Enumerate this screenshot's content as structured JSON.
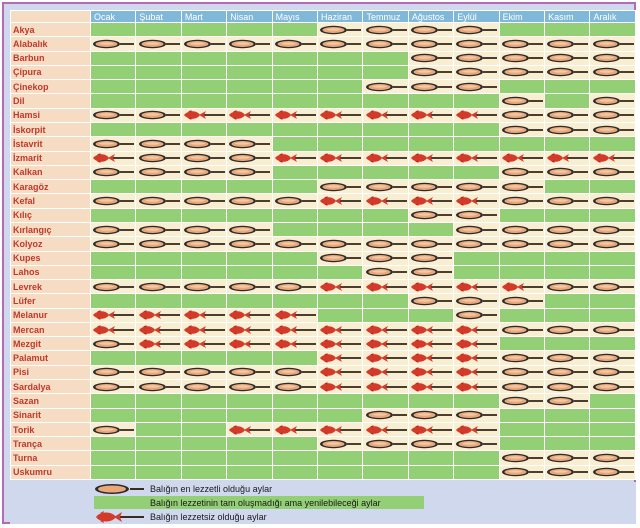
{
  "months": [
    "Ocak",
    "Şubat",
    "Mart",
    "Nisan",
    "Mayıs",
    "Haziran",
    "Temmuz",
    "Ağustos",
    "Eylül",
    "Ekim",
    "Kasım",
    "Aralık"
  ],
  "fish": [
    {
      "name": "Akya",
      "cells": "GGGGGPPPPGGG"
    },
    {
      "name": "Alabalık",
      "cells": "PPPPPPPPPPPP"
    },
    {
      "name": "Barbun",
      "cells": "GGGGGGGPPPPP"
    },
    {
      "name": "Çipura",
      "cells": "GGGGGGGPPPPP"
    },
    {
      "name": "Çinekop",
      "cells": "GGGGGGPPPGGG"
    },
    {
      "name": "Dil",
      "cells": "GGGGGGGGGPGP"
    },
    {
      "name": "Hamsi",
      "cells": "PPRRRRRRRPPP"
    },
    {
      "name": "İskorpit",
      "cells": "GGGGGGGGGPPP"
    },
    {
      "name": "İstavrit",
      "cells": "PPPPGGGGGGGG"
    },
    {
      "name": "İzmarit",
      "cells": "RPPPRRRRRRRR"
    },
    {
      "name": "Kalkan",
      "cells": "PPPPGGGGGPPP"
    },
    {
      "name": "Karagöz",
      "cells": "GGGGGPPPPPGG"
    },
    {
      "name": "Kefal",
      "cells": "PPPPPRRRRPPP"
    },
    {
      "name": "Kılıç",
      "cells": "GGGGGGGPPGGG"
    },
    {
      "name": "Kırlangıç",
      "cells": "PPPPGGGGPPPP"
    },
    {
      "name": "Kolyoz",
      "cells": "PPPPPPPPPPPP"
    },
    {
      "name": "Kupes",
      "cells": "GGGGGPPPGGGG"
    },
    {
      "name": "Lahos",
      "cells": "GGGGGGPPGGGG"
    },
    {
      "name": "Levrek",
      "cells": "PPPPPRRRRRPP"
    },
    {
      "name": "Lüfer",
      "cells": "GGGGGGGPPPGG"
    },
    {
      "name": "Melanur",
      "cells": "RRRRRGGGPGGG"
    },
    {
      "name": "Mercan",
      "cells": "RRRRRRRRRPPP"
    },
    {
      "name": "Mezgit",
      "cells": "PRRRRRRRRGGG"
    },
    {
      "name": "Palamut",
      "cells": "GGGGGRRRRPPP"
    },
    {
      "name": "Pisi",
      "cells": "PPPPPRRRRPPP"
    },
    {
      "name": "Sardalya",
      "cells": "PPPPPRRRRPPP"
    },
    {
      "name": "Sazan",
      "cells": "GGGGGGGGGPPG"
    },
    {
      "name": "Sinarit",
      "cells": "GGGGGGPPPGGG"
    },
    {
      "name": "Torik",
      "cells": "PGGRRRRRRGGG"
    },
    {
      "name": "Trança",
      "cells": "GGGGGPPPPGGG"
    },
    {
      "name": "Turna",
      "cells": "GGGGGGGGGPPP"
    },
    {
      "name": "Uskumru",
      "cells": "GGGGGGGGGPPP"
    }
  ],
  "legend": {
    "tasty": "Balığın en lezzetli olduğu aylar",
    "renewable": "Balığın lezzetinin tam oluşmadığı ama yenilebileceği aylar",
    "bad": "Balığın lezzetsiz olduğu aylar"
  },
  "colors": {
    "green": "#93cf75",
    "cream": "#f8eed2",
    "header": "#7fb8d8",
    "name_bg": "#f7dcc4",
    "name_text": "#c0392b"
  },
  "icons": {
    "tasty": "fish-in-pan-icon",
    "bad": "red-fish-icon"
  }
}
